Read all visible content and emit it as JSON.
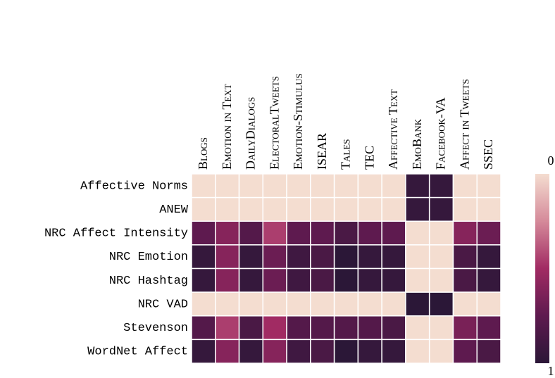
{
  "chart_data": {
    "type": "heatmap",
    "columns": [
      "Blogs",
      "Emotion in Text",
      "DailyDialogs",
      "ElectoralTweets",
      "Emotion-Stimulus",
      "ISEAR",
      "Tales",
      "TEC",
      "Affective Text",
      "EmoBank",
      "Facebook-VA",
      "Affect in Tweets",
      "SSEC"
    ],
    "rows": [
      "Affective Norms",
      "ANEW",
      "NRC Affect Intensity",
      "NRC Emotion",
      "NRC Hashtag",
      "NRC VAD",
      "Stevenson",
      "WordNet Affect"
    ],
    "values": [
      [
        0,
        0,
        0,
        0,
        0,
        0,
        0,
        0,
        0,
        0.95,
        0.95,
        0,
        0
      ],
      [
        0,
        0,
        0,
        0,
        0,
        0,
        0,
        0,
        0,
        0.95,
        0.95,
        0,
        0
      ],
      [
        0.75,
        0.6,
        0.8,
        0.45,
        0.75,
        0.75,
        0.85,
        0.75,
        0.75,
        0,
        0,
        0.6,
        0.7
      ],
      [
        0.95,
        0.6,
        0.95,
        0.7,
        0.9,
        0.85,
        1,
        0.95,
        0.95,
        0,
        0,
        0.85,
        0.95
      ],
      [
        0.95,
        0.6,
        0.95,
        0.7,
        0.9,
        0.85,
        1,
        0.95,
        0.95,
        0,
        0,
        0.85,
        0.95
      ],
      [
        0,
        0,
        0,
        0,
        0,
        0,
        0,
        0,
        0,
        1,
        1,
        0,
        0
      ],
      [
        0.8,
        0.45,
        0.85,
        0.5,
        0.8,
        0.8,
        0.8,
        0.8,
        0.85,
        0,
        0,
        0.65,
        0.75
      ],
      [
        0.95,
        0.6,
        0.95,
        0.6,
        0.9,
        0.85,
        1,
        0.95,
        0.95,
        0,
        0,
        0.75,
        0.85
      ]
    ],
    "zlim": [
      0,
      1
    ],
    "zticks": [
      0,
      1
    ],
    "colorscale": [
      "#f4ddd0",
      "#d58a9a",
      "#a12b63",
      "#5e1a4f",
      "#2b1737"
    ]
  }
}
